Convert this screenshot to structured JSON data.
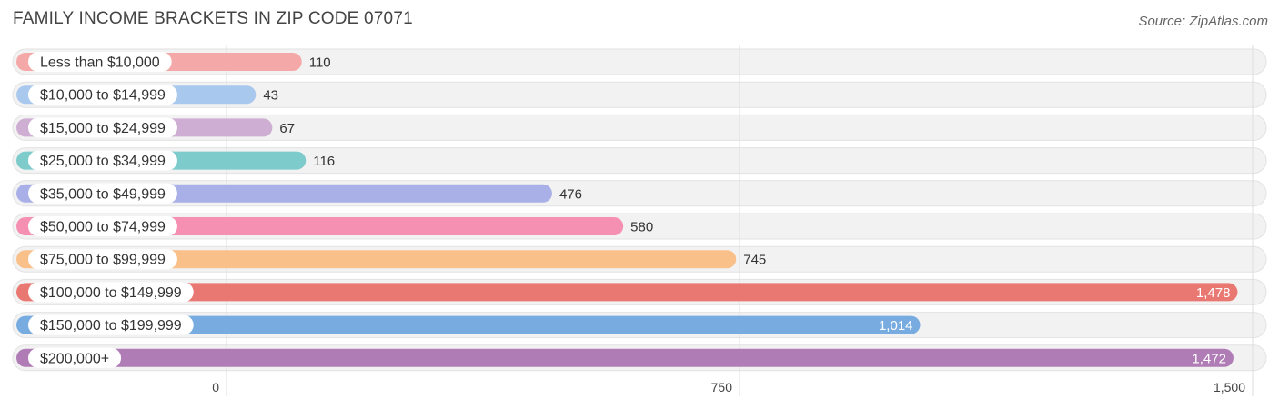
{
  "chart_data": {
    "type": "bar",
    "orientation": "horizontal",
    "title": "FAMILY INCOME BRACKETS IN ZIP CODE 07071",
    "source": "Source: ZipAtlas.com",
    "categories": [
      "Less than $10,000",
      "$10,000 to $14,999",
      "$15,000 to $24,999",
      "$25,000 to $34,999",
      "$35,000 to $49,999",
      "$50,000 to $74,999",
      "$75,000 to $99,999",
      "$100,000 to $149,999",
      "$150,000 to $199,999",
      "$200,000+"
    ],
    "values": [
      110,
      43,
      67,
      116,
      476,
      580,
      745,
      1478,
      1014,
      1472
    ],
    "value_labels": [
      "110",
      "43",
      "67",
      "116",
      "476",
      "580",
      "745",
      "1,478",
      "1,014",
      "1,472"
    ],
    "colors": [
      "#f4a9a8",
      "#a9c8ed",
      "#cfaed3",
      "#7ecbcb",
      "#a9b0e8",
      "#f590b2",
      "#f9c089",
      "#ea7872",
      "#78ace0",
      "#b07cb6"
    ],
    "xlim": [
      0,
      1500
    ],
    "ticks": [
      0,
      750,
      1500
    ],
    "tick_labels": [
      "0",
      "750",
      "1,500"
    ],
    "grid": true
  }
}
